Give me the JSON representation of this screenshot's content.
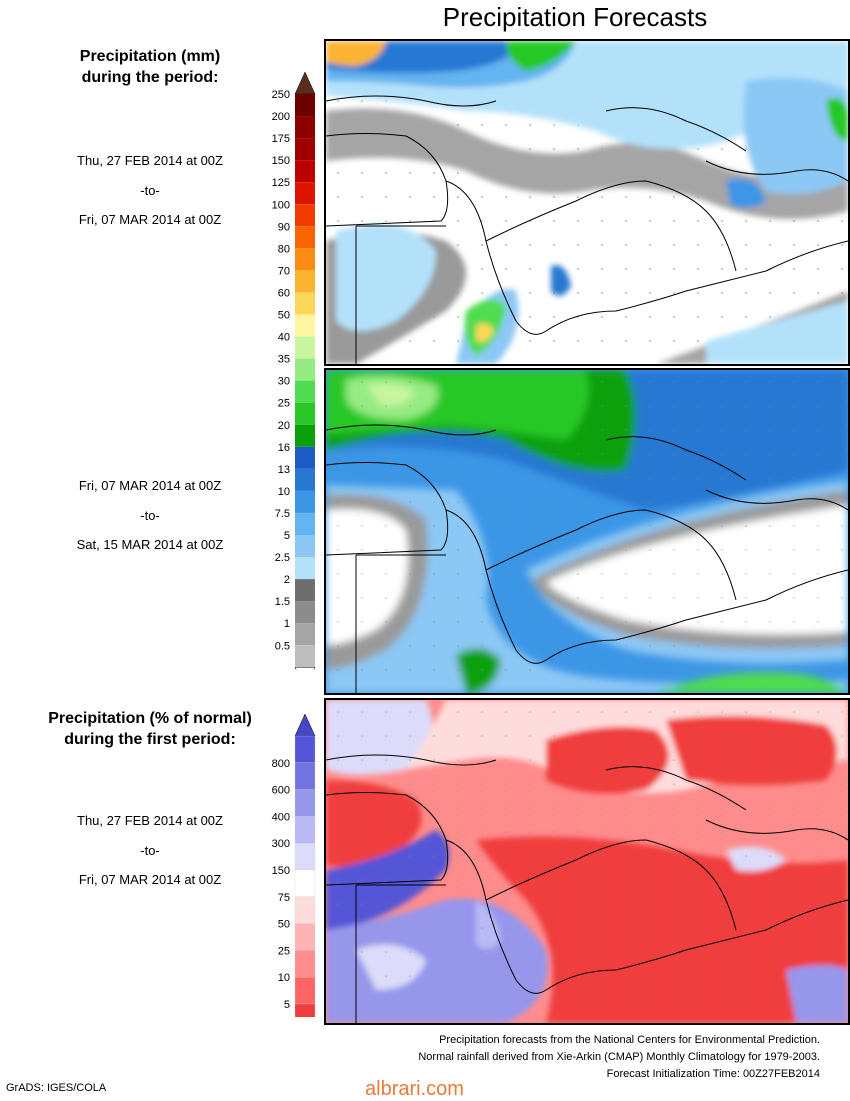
{
  "title": "Precipitation Forecasts",
  "section1": {
    "heading_line1": "Precipitation (mm)",
    "heading_line2": "during the period:",
    "period1": {
      "start": "Thu, 27 FEB 2014 at 00Z",
      "sep": "-to-",
      "end": "Fri, 07 MAR 2014 at 00Z"
    },
    "period2": {
      "start": "Fri, 07 MAR 2014 at 00Z",
      "sep": "-to-",
      "end": "Sat, 15 MAR 2014 at 00Z"
    },
    "colorbar": {
      "labels": [
        "250",
        "200",
        "175",
        "150",
        "125",
        "100",
        "90",
        "80",
        "70",
        "60",
        "50",
        "40",
        "35",
        "30",
        "25",
        "20",
        "16",
        "13",
        "10",
        "7.5",
        "5",
        "2.5",
        "2",
        "1.5",
        "1",
        "0.5"
      ],
      "colors": [
        "#6e0000",
        "#8c0000",
        "#a00000",
        "#be0000",
        "#dc1400",
        "#f03c00",
        "#fa6400",
        "#fa8c14",
        "#fab432",
        "#fcd75a",
        "#fff5a0",
        "#c8f5a0",
        "#96eb82",
        "#50dc50",
        "#28c828",
        "#0aa00a",
        "#1e5ac8",
        "#2878d2",
        "#3c96e6",
        "#64b4f0",
        "#8cc8f5",
        "#b4e1fa",
        "#6e6e6e",
        "#8c8c8c",
        "#a5a5a5",
        "#bebebe"
      ],
      "top_color": "#5a2d1e"
    }
  },
  "section2": {
    "heading_line1": "Precipitation (% of normal)",
    "heading_line2": "during the first period:",
    "period": {
      "start": "Thu, 27 FEB 2014 at 00Z",
      "sep": "-to-",
      "end": "Fri, 07 MAR 2014 at 00Z"
    },
    "colorbar": {
      "labels": [
        "800",
        "600",
        "400",
        "300",
        "150",
        "75",
        "50",
        "25",
        "10",
        "5"
      ],
      "colors": [
        "#5555d7",
        "#7373e1",
        "#9696eb",
        "#b9b9f5",
        "#dcdcfa",
        "#ffffff",
        "#ffdcdc",
        "#ffb4b4",
        "#ff8c8c",
        "#ff6464",
        "#f03c3c"
      ],
      "top_color": "#4646c8",
      "bottom_color": "#e63232"
    }
  },
  "footer": {
    "line1": "Precipitation forecasts from the National Centers for Environmental Prediction.",
    "line2": "Normal rainfall derived from Xie-Arkin (CMAP) Monthly Climatology for 1979-2003.",
    "line3": "Forecast Initialization Time: 00Z27FEB2014"
  },
  "credit": "GrADS: IGES/COLA",
  "watermark": "albrari.com"
}
